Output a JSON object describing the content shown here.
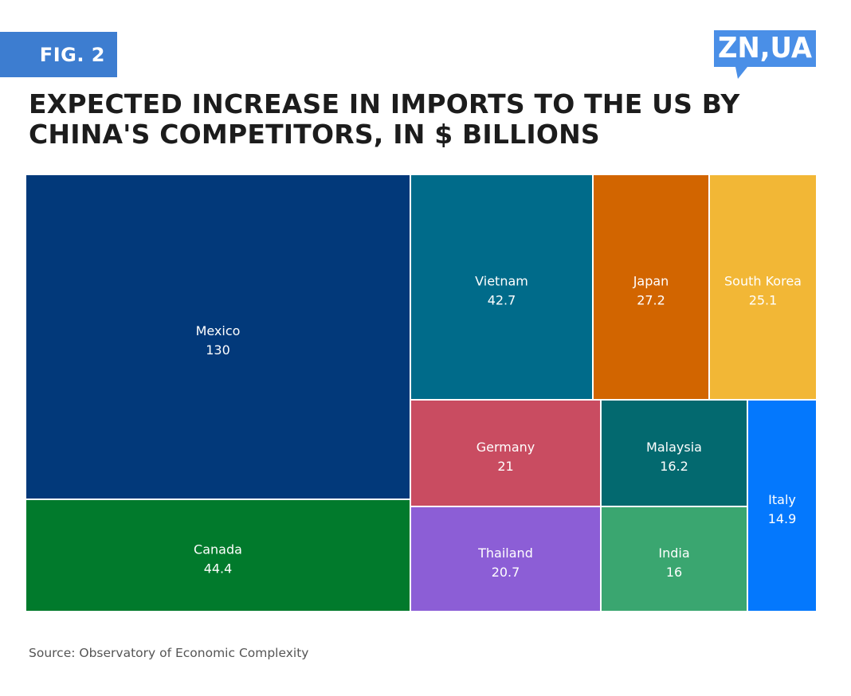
{
  "badge": "FIG. 2",
  "logo_text": "ZN,UA",
  "title_lines": [
    "EXPECTED INCREASE IN IMPORTS TO THE US BY",
    "CHINA'S COMPETITORS, IN $ BILLIONS"
  ],
  "source": "Source: Observatory of Economic Complexity",
  "colors": {
    "badge": "#3d7dd0",
    "logo": "#4a8fe7"
  },
  "chart_data": {
    "type": "treemap",
    "title": "EXPECTED INCREASE IN IMPORTS TO THE US BY CHINA'S COMPETITORS, IN $ BILLIONS",
    "unit": "$ billions",
    "items": [
      {
        "name": "Mexico",
        "value": 130,
        "value_label": "130",
        "color": "#02397a"
      },
      {
        "name": "Canada",
        "value": 44.4,
        "value_label": "44.4",
        "color": "#017a2c"
      },
      {
        "name": "Vietnam",
        "value": 42.7,
        "value_label": "42.7",
        "color": "#006b8a"
      },
      {
        "name": "Japan",
        "value": 27.2,
        "value_label": "27.2",
        "color": "#d26500"
      },
      {
        "name": "South Korea",
        "value": 25.1,
        "value_label": "25.1",
        "color": "#f2b736"
      },
      {
        "name": "Germany",
        "value": 21,
        "value_label": "21",
        "color": "#c94c61"
      },
      {
        "name": "Thailand",
        "value": 20.7,
        "value_label": "20.7",
        "color": "#8c5ed6"
      },
      {
        "name": "Malaysia",
        "value": 16.2,
        "value_label": "16.2",
        "color": "#03696f"
      },
      {
        "name": "India",
        "value": 16,
        "value_label": "16",
        "color": "#3aa670"
      },
      {
        "name": "Italy",
        "value": 14.9,
        "value_label": "14.9",
        "color": "#0478fd"
      }
    ]
  }
}
